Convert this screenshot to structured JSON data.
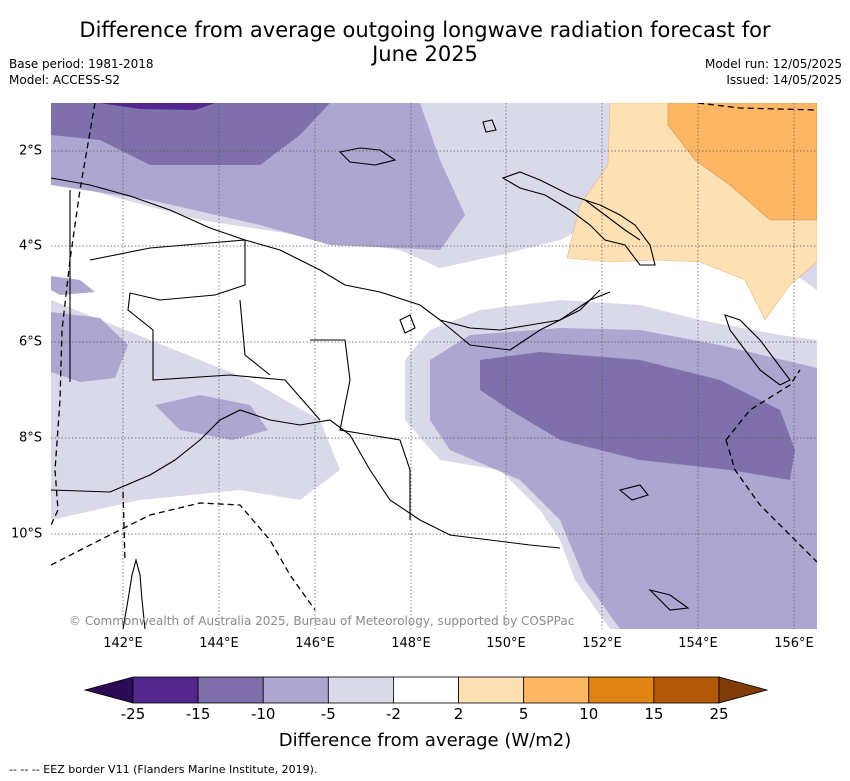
{
  "title_line1": "Difference from average outgoing longwave radiation forecast for",
  "title_line2": "June 2025",
  "base_period": "Base period: 1981-2018",
  "model": "Model: ACCESS-S2",
  "model_run": "Model run: 12/05/2025",
  "issued": "Issued: 14/05/2025",
  "credit": "© Commonwealth of Australia 2025, Bureau of Meteorology, supported by COSPPac",
  "x_ticks": [
    "142°E",
    "144°E",
    "146°E",
    "148°E",
    "150°E",
    "152°E",
    "154°E",
    "156°E"
  ],
  "y_ticks": [
    "2°S",
    "4°S",
    "6°S",
    "8°S",
    "10°S"
  ],
  "colorbar": {
    "labels": [
      "-25",
      "-15",
      "-10",
      "-5",
      "-2",
      "2",
      "5",
      "10",
      "15",
      "25"
    ],
    "colors": [
      "#2d0a55",
      "#54278f",
      "#7f70ab",
      "#aca6d0",
      "#d9d9ea",
      "#ffffff",
      "#fee0b5",
      "#fdb663",
      "#e08214",
      "#b35806",
      "#7f3b08"
    ],
    "title": "Difference from average (W/m2)"
  },
  "footnote": "--  --  -- EEZ border V11 (Flanders Marine Institute, 2019)."
}
